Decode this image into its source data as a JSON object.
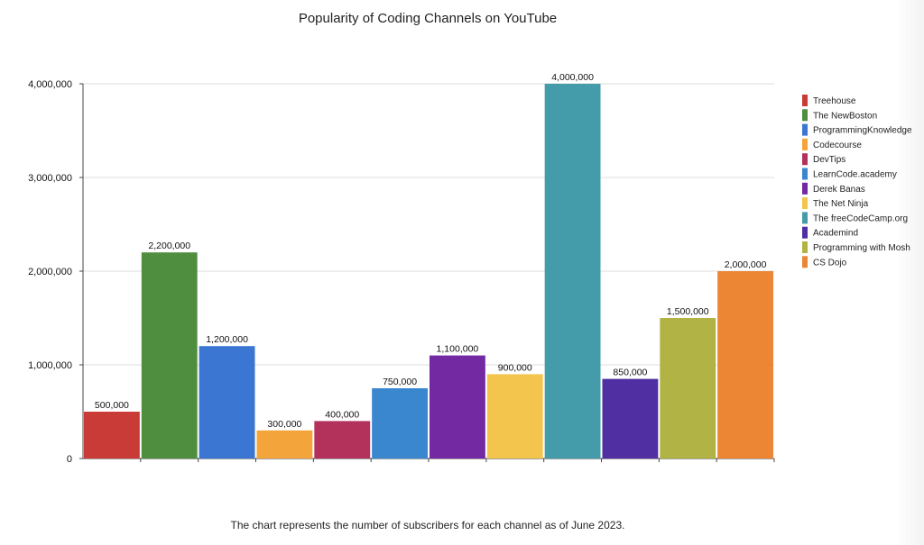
{
  "chart_data": {
    "type": "bar",
    "title": "Popularity of Coding Channels on YouTube",
    "footnote": "The chart represents the number of subscribers for each channel as of June 2023.",
    "xlabel": "",
    "ylabel": "",
    "ylim": [
      0,
      4000000
    ],
    "yticks": [
      {
        "value": 0,
        "label": "0"
      },
      {
        "value": 1000000,
        "label": "1,000,000"
      },
      {
        "value": 2000000,
        "label": "2,000,000"
      },
      {
        "value": 3000000,
        "label": "3,000,000"
      },
      {
        "value": 4000000,
        "label": "4,000,000"
      }
    ],
    "grid": true,
    "legend_position": "right",
    "bars": [
      {
        "name": "Treehouse",
        "value": 500000,
        "label": "500,000",
        "color": "#c93b37"
      },
      {
        "name": "The NewBoston",
        "value": 2200000,
        "label": "2,200,000",
        "color": "#4f8e3f"
      },
      {
        "name": "ProgrammingKnowledge",
        "value": 1200000,
        "label": "1,200,000",
        "color": "#3a76d2"
      },
      {
        "name": "Codecourse",
        "value": 300000,
        "label": "300,000",
        "color": "#f3a43a"
      },
      {
        "name": "DevTips",
        "value": 400000,
        "label": "400,000",
        "color": "#b3325c"
      },
      {
        "name": "LearnCode.academy",
        "value": 750000,
        "label": "750,000",
        "color": "#3a86cf"
      },
      {
        "name": "Derek Banas",
        "value": 1100000,
        "label": "1,100,000",
        "color": "#7229a1"
      },
      {
        "name": "The Net Ninja",
        "value": 900000,
        "label": "900,000",
        "color": "#f4c54c"
      },
      {
        "name": "The freeCodeCamp.org",
        "value": 4000000,
        "label": "4,000,000",
        "color": "#449caa"
      },
      {
        "name": "Academind",
        "value": 850000,
        "label": "850,000",
        "color": "#4f2fa2"
      },
      {
        "name": "Programming with Mosh",
        "value": 1500000,
        "label": "1,500,000",
        "color": "#b1b344"
      },
      {
        "name": "CS Dojo",
        "value": 2000000,
        "label": "2,000,000",
        "color": "#ec8635"
      }
    ]
  }
}
